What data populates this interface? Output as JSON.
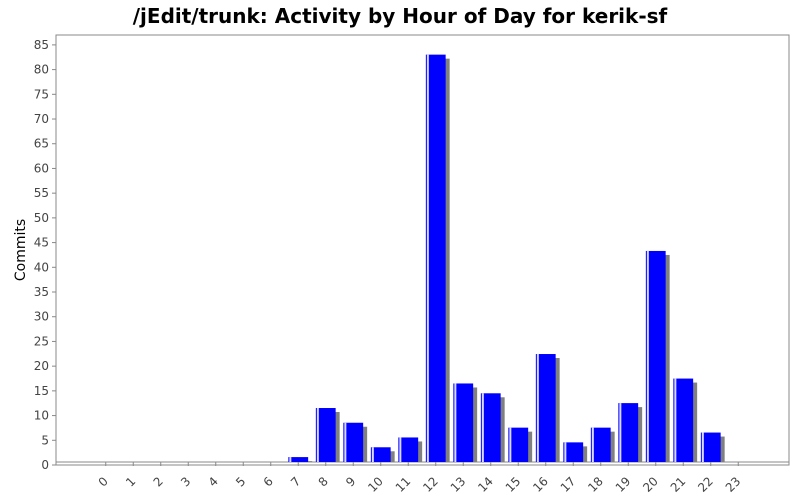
{
  "chart_data": {
    "type": "bar",
    "title": "/jEdit/trunk: Activity by Hour of Day for kerik-sf",
    "xlabel": "",
    "ylabel": "Commits",
    "categories": [
      "0",
      "1",
      "2",
      "3",
      "4",
      "5",
      "6",
      "7",
      "8",
      "9",
      "10",
      "11",
      "12",
      "13",
      "14",
      "15",
      "16",
      "17",
      "18",
      "19",
      "20",
      "21",
      "22",
      "23"
    ],
    "values": [
      0,
      0,
      0,
      0,
      0,
      0,
      0,
      1,
      11,
      8,
      3,
      5,
      83,
      16,
      14,
      7,
      22,
      4,
      7,
      12,
      43,
      17,
      6,
      0
    ],
    "ylim": [
      0,
      87
    ],
    "yticks": [
      0,
      5,
      10,
      15,
      20,
      25,
      30,
      35,
      40,
      45,
      50,
      55,
      60,
      65,
      70,
      75,
      80,
      85
    ],
    "grid": false,
    "legend": "none",
    "colors": {
      "bar": "#0000ff",
      "bar_highlight": "#ffffff",
      "shadow": "#808080",
      "axis": "#888888"
    }
  }
}
